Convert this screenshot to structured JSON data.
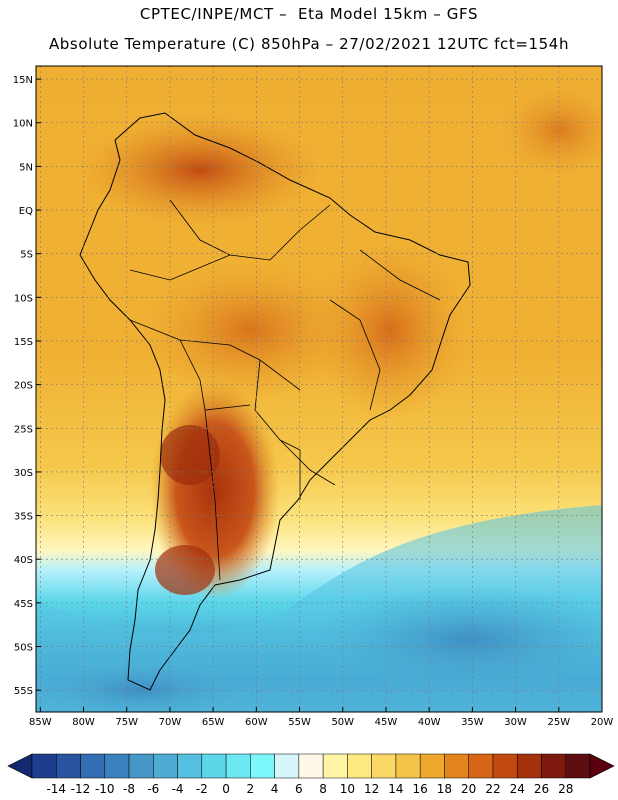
{
  "header": {
    "line1": "CPTEC/INPE/MCT –  Eta Model 15km – GFS",
    "line2": "Absolute Temperature (C) 850hPa – 27/02/2021 12UTC fct=154h"
  },
  "map": {
    "lat_labels": [
      "15N",
      "10N",
      "5N",
      "EQ",
      "5S",
      "10S",
      "15S",
      "20S",
      "25S",
      "30S",
      "35S",
      "40S",
      "45S",
      "50S",
      "55S"
    ],
    "lat_values": [
      15,
      10,
      5,
      0,
      -5,
      -10,
      -15,
      -20,
      -25,
      -30,
      -35,
      -40,
      -45,
      -50,
      -55
    ],
    "lon_labels": [
      "85W",
      "80W",
      "75W",
      "70W",
      "65W",
      "60W",
      "55W",
      "50W",
      "45W",
      "40W",
      "35W",
      "30W",
      "25W",
      "20W"
    ],
    "lon_values": [
      -85,
      -80,
      -75,
      -70,
      -65,
      -60,
      -55,
      -50,
      -45,
      -40,
      -35,
      -30,
      -25,
      -20
    ],
    "extent": {
      "lon_min": -85.5,
      "lon_max": -20,
      "lat_min": -57.5,
      "lat_max": 16.5
    },
    "grid": true
  },
  "colorbar": {
    "labels": [
      "-14",
      "-12",
      "-10",
      "-8",
      "-6",
      "-4",
      "-2",
      "0",
      "2",
      "4",
      "6",
      "8",
      "10",
      "12",
      "14",
      "16",
      "18",
      "20",
      "22",
      "24",
      "26",
      "28"
    ],
    "colors": [
      "#1f3d8f",
      "#2b54a0",
      "#336db2",
      "#3b82bf",
      "#4597c7",
      "#4dabd4",
      "#55c0e0",
      "#5ed6ea",
      "#6ce9f2",
      "#7cf7fa",
      "#d6f6fb",
      "#fff8e6",
      "#fff5a5",
      "#fde97e",
      "#fbd966",
      "#f4c34a",
      "#eda82b",
      "#e3841c",
      "#d76515",
      "#c2490f",
      "#a5300c",
      "#7d1a0d",
      "#5c0d10"
    ],
    "low_arrow_color": "#13286f",
    "high_arrow_color": "#5c0010"
  }
}
